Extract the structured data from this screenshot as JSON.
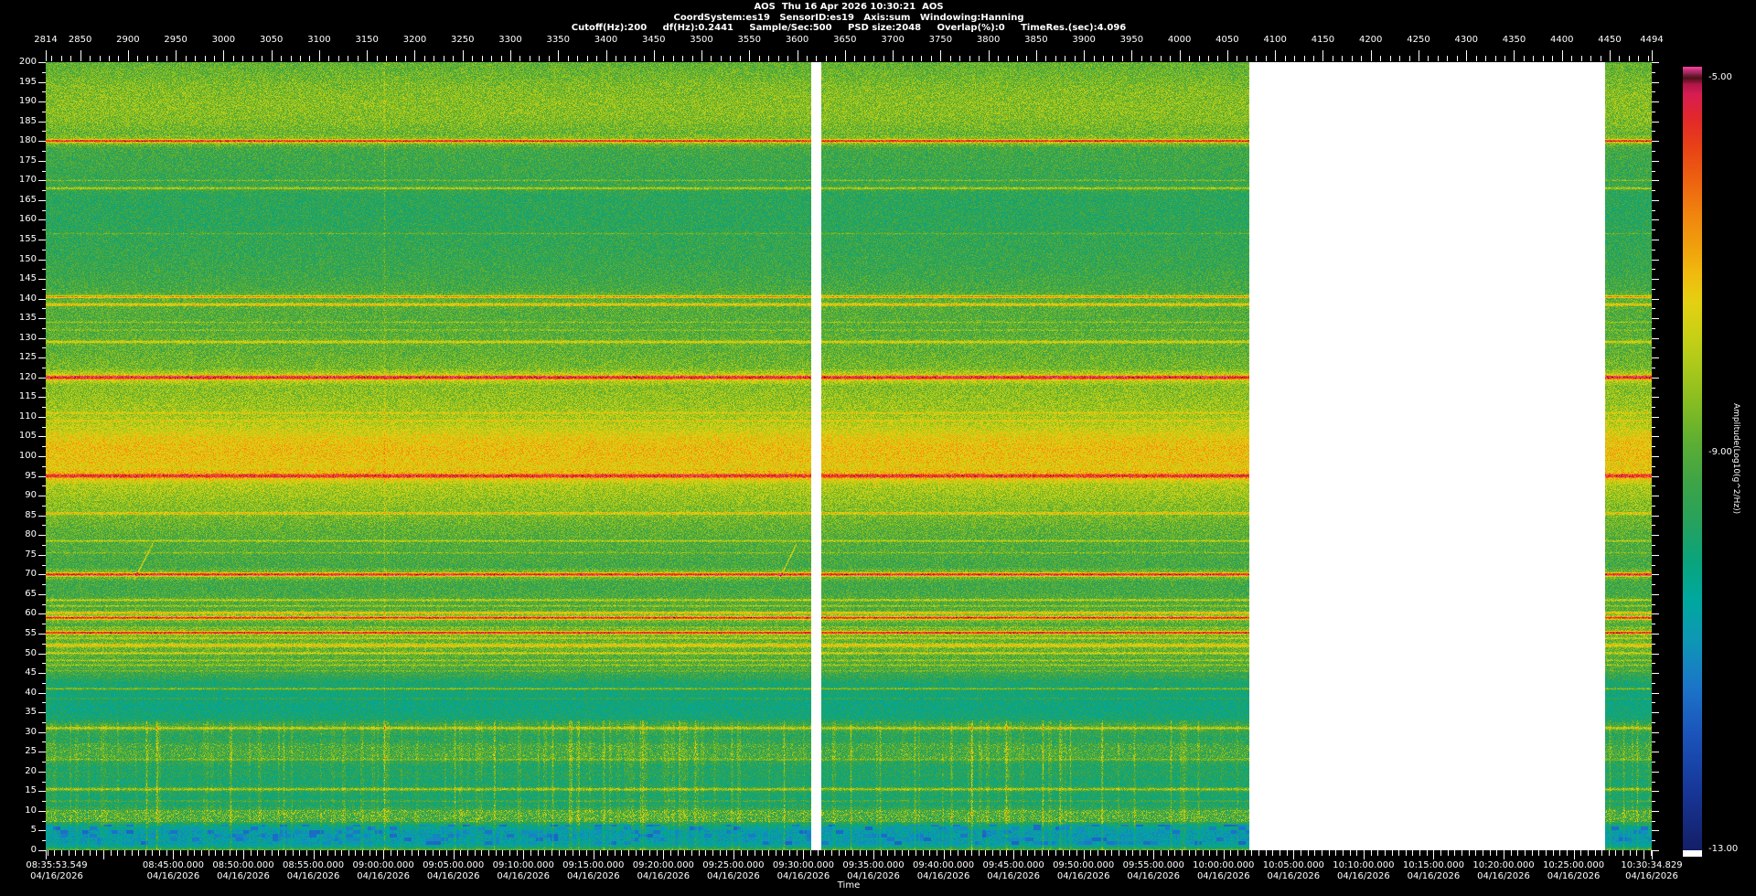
{
  "header": {
    "line1": "AOS  Thu 16 Apr 2026 10:30:21  AOS",
    "line2": "CoordSystem:es19   SensorID:es19   Axis:sum   Windowing:Hanning",
    "line3": "Cutoff(Hz):200     df(Hz):0.2441     Sample/Sec:500     PSD size:2048     Overlap(%):0     TimeRes.(sec):4.096"
  },
  "chart_data": {
    "type": "heatmap",
    "subtype": "spectrogram",
    "x_axis_top": {
      "unit": "record",
      "range": [
        2814,
        4494
      ],
      "tick_labels": [
        2814,
        2850,
        2900,
        2950,
        3000,
        3050,
        3100,
        3150,
        3200,
        3250,
        3300,
        3350,
        3400,
        3450,
        3500,
        3550,
        3600,
        3650,
        3700,
        3750,
        3800,
        3850,
        3900,
        3950,
        4000,
        4050,
        4100,
        4150,
        4200,
        4250,
        4300,
        4350,
        4400,
        4450,
        4494
      ],
      "minor_step": 10,
      "major_step": 50
    },
    "x_axis_bottom": {
      "label": "Time",
      "date": "04/16/2026",
      "start": "08:35:53.549",
      "end": "10:30:34.829",
      "labeled_times": [
        "08:45:00.000",
        "08:50:00.000",
        "08:55:00.000",
        "09:00:00.000",
        "09:05:00.000",
        "09:10:00.000",
        "09:15:00.000",
        "09:20:00.000",
        "09:25:00.000",
        "09:30:00.000",
        "09:35:00.000",
        "09:40:00.000",
        "09:45:00.000",
        "09:50:00.000",
        "09:55:00.000",
        "10:00:00.000",
        "10:05:00.000",
        "10:10:00.000",
        "10:15:00.000",
        "10:20:00.000",
        "10:25:00.000"
      ],
      "minor_step_sec": 30,
      "major_step_sec": 300
    },
    "y_axis": {
      "unit": "Hz",
      "min": 0,
      "max": 200,
      "major_step": 5,
      "minor_step": 2.5,
      "tick_labels": [
        0,
        5,
        10,
        15,
        20,
        25,
        30,
        35,
        40,
        45,
        50,
        55,
        60,
        65,
        70,
        75,
        80,
        85,
        90,
        95,
        100,
        105,
        110,
        115,
        120,
        125,
        130,
        135,
        140,
        145,
        150,
        155,
        160,
        165,
        170,
        175,
        180,
        185,
        190,
        195,
        200
      ]
    },
    "colorbar": {
      "label": "Amplitude(Log10(g^2/Hz))",
      "max": -5.0,
      "min": -13.0,
      "tick_labels": [
        "-5.00",
        "-9.00",
        "-13.00"
      ],
      "tick_values": [
        -5,
        -9,
        -13
      ]
    },
    "colormap_stops": [
      [
        0.0,
        "#141f68"
      ],
      [
        0.08,
        "#17389a"
      ],
      [
        0.15,
        "#1b55bb"
      ],
      [
        0.21,
        "#1b76c8"
      ],
      [
        0.27,
        "#0d98b4"
      ],
      [
        0.32,
        "#00a89e"
      ],
      [
        0.37,
        "#0aa47c"
      ],
      [
        0.42,
        "#27a25c"
      ],
      [
        0.47,
        "#3ea447"
      ],
      [
        0.52,
        "#5cae33"
      ],
      [
        0.57,
        "#85bc22"
      ],
      [
        0.62,
        "#adc91a"
      ],
      [
        0.66,
        "#cad015"
      ],
      [
        0.7,
        "#e4d012"
      ],
      [
        0.735,
        "#f0bb0e"
      ],
      [
        0.77,
        "#f0a00d"
      ],
      [
        0.81,
        "#f0860e"
      ],
      [
        0.85,
        "#ee6610"
      ],
      [
        0.895,
        "#e84415"
      ],
      [
        0.935,
        "#e2282a"
      ],
      [
        0.965,
        "#d81d52"
      ],
      [
        0.978,
        "#b0164a"
      ],
      [
        0.986,
        "#4a1016"
      ],
      [
        1.0,
        "#f23f9f"
      ]
    ],
    "background_profile": [
      [
        0,
        -8.8
      ],
      [
        0.9,
        -10.2
      ],
      [
        1.8,
        -10.6
      ],
      [
        4.8,
        -10.65
      ],
      [
        6.4,
        -10.0
      ],
      [
        7.2,
        -9.4
      ],
      [
        10.2,
        -9.3
      ],
      [
        11.5,
        -9.75
      ],
      [
        14,
        -9.85
      ],
      [
        17,
        -9.9
      ],
      [
        19,
        -9.65
      ],
      [
        21,
        -9.75
      ],
      [
        23.5,
        -9.3
      ],
      [
        26.5,
        -9.35
      ],
      [
        28.5,
        -9.6
      ],
      [
        30,
        -9.5
      ],
      [
        32,
        -9.4
      ],
      [
        33.5,
        -9.9
      ],
      [
        36,
        -10.05
      ],
      [
        42,
        -9.95
      ],
      [
        44,
        -9.45
      ],
      [
        46.5,
        -9.0
      ],
      [
        54,
        -8.95
      ],
      [
        58,
        -9.05
      ],
      [
        62,
        -9.1
      ],
      [
        67,
        -9.2
      ],
      [
        72,
        -9.2
      ],
      [
        76,
        -9.05
      ],
      [
        80,
        -8.9
      ],
      [
        84,
        -8.65
      ],
      [
        88,
        -8.35
      ],
      [
        92,
        -8.05
      ],
      [
        94.5,
        -7.8
      ],
      [
        96.5,
        -7.45
      ],
      [
        99,
        -7.25
      ],
      [
        102,
        -7.2
      ],
      [
        104.5,
        -7.35
      ],
      [
        106.5,
        -7.7
      ],
      [
        109,
        -8.0
      ],
      [
        112,
        -8.2
      ],
      [
        116,
        -8.35
      ],
      [
        120,
        -8.5
      ],
      [
        123,
        -8.65
      ],
      [
        127,
        -8.85
      ],
      [
        132,
        -8.95
      ],
      [
        137,
        -9.0
      ],
      [
        141,
        -9.1
      ],
      [
        146,
        -9.3
      ],
      [
        151,
        -9.4
      ],
      [
        156,
        -9.45
      ],
      [
        158,
        -9.55
      ],
      [
        166,
        -9.55
      ],
      [
        169,
        -9.4
      ],
      [
        173,
        -9.3
      ],
      [
        177,
        -9.25
      ],
      [
        180.5,
        -9.0
      ],
      [
        182.5,
        -8.7
      ],
      [
        185.5,
        -8.5
      ],
      [
        189,
        -8.45
      ],
      [
        192,
        -8.5
      ],
      [
        195,
        -8.6
      ],
      [
        198,
        -8.75
      ],
      [
        200,
        -8.8
      ]
    ],
    "tonal_lines": [
      [
        180,
        2.9,
        0.6,
        0.9
      ],
      [
        170,
        0.9,
        0.35,
        0
      ],
      [
        168,
        1.45,
        0.45,
        0.2
      ],
      [
        156.5,
        0.6,
        0.35,
        0
      ],
      [
        140.5,
        2.1,
        0.5,
        0.4
      ],
      [
        138.5,
        1.9,
        0.5,
        0.3
      ],
      [
        134,
        0.6,
        0.35,
        0
      ],
      [
        132,
        0.6,
        0.35,
        0
      ],
      [
        129,
        1.3,
        0.5,
        0.2
      ],
      [
        120,
        2.65,
        0.75,
        1.0
      ],
      [
        111,
        0.7,
        0.35,
        0
      ],
      [
        109,
        0.7,
        0.35,
        0
      ],
      [
        95,
        1.75,
        0.7,
        0.8
      ],
      [
        85.5,
        1.2,
        0.45,
        0.2
      ],
      [
        78.5,
        1.1,
        0.4,
        0
      ],
      [
        75.5,
        0.6,
        0.35,
        0
      ],
      [
        70,
        3.2,
        0.65,
        1.0
      ],
      [
        63.5,
        1.2,
        0.45,
        0.2
      ],
      [
        62,
        1.0,
        0.4,
        0
      ],
      [
        60.3,
        1.8,
        0.45,
        0.3
      ],
      [
        59,
        3.1,
        0.55,
        0.9
      ],
      [
        56.6,
        0.6,
        0.35,
        0
      ],
      [
        55.2,
        3.0,
        0.55,
        0.9
      ],
      [
        53.8,
        1.0,
        0.4,
        0
      ],
      [
        52,
        1.45,
        0.7,
        0.4
      ],
      [
        50,
        1.1,
        0.45,
        0.2
      ],
      [
        48.2,
        0.9,
        0.4,
        0
      ],
      [
        47,
        0.8,
        0.35,
        0
      ],
      [
        45.5,
        0.6,
        0.3,
        0
      ],
      [
        41,
        1.4,
        0.45,
        0.2
      ],
      [
        38.5,
        0.7,
        0.35,
        0
      ],
      [
        31,
        1.45,
        0.55,
        0.3
      ],
      [
        23,
        0.9,
        0.4,
        0
      ],
      [
        15.5,
        1.55,
        0.6,
        0.3
      ],
      [
        12.5,
        0.7,
        0.4,
        0
      ]
    ],
    "speckle_bands": [
      {
        "f0": 23.2,
        "f1": 27.2,
        "p": 0.3,
        "boost": 1.1
      },
      {
        "f0": 7.2,
        "f1": 10.2,
        "p": 0.4,
        "boost": 1.5
      },
      {
        "f0": 181,
        "f1": 195,
        "p": 0.18,
        "boost": 0.55
      }
    ],
    "blue_patch_band": {
      "f0": 1.5,
      "f1": 6.5,
      "p": 0.32,
      "depth": -10.6
    },
    "data_gaps": [
      {
        "x0": 0.4766,
        "x1": 0.4829
      },
      {
        "x0": 0.7494,
        "x1": 0.971
      }
    ],
    "vertical_streaks": [
      [
        0.0558,
        0.5,
        1
      ],
      [
        0.0626,
        1.3,
        0
      ],
      [
        0.0689,
        1.5,
        0
      ],
      [
        0.115,
        1.0,
        0
      ],
      [
        0.148,
        0.9,
        0
      ],
      [
        0.2107,
        1.8,
        1
      ],
      [
        0.2545,
        1.1,
        0
      ],
      [
        0.279,
        0.8,
        0
      ],
      [
        0.3155,
        1.2,
        0
      ],
      [
        0.3474,
        0.9,
        0
      ],
      [
        0.3701,
        1.0,
        0
      ],
      [
        0.4043,
        0.8,
        0
      ],
      [
        0.4271,
        0.9,
        0
      ],
      [
        0.4595,
        1.3,
        0
      ],
      [
        0.5011,
        1.2,
        0
      ],
      [
        0.5194,
        1.0,
        0
      ],
      [
        0.541,
        0.9,
        0
      ],
      [
        0.5638,
        0.8,
        0
      ],
      [
        0.5763,
        1.4,
        0
      ],
      [
        0.5979,
        1.1,
        0
      ],
      [
        0.6207,
        1.5,
        0
      ],
      [
        0.6378,
        0.9,
        0
      ],
      [
        0.6577,
        0.8,
        0
      ],
      [
        0.6776,
        1.0,
        0
      ],
      [
        0.7004,
        0.9,
        0
      ],
      [
        0.7175,
        0.8,
        0
      ],
      [
        0.9738,
        0.9,
        0
      ],
      [
        0.9824,
        0.8,
        0
      ],
      [
        0.9909,
        1.0,
        0
      ]
    ],
    "chirps": [
      {
        "x0": 0.0553,
        "x1": 0.066,
        "f0": 69,
        "f1": 77.5,
        "a": 1.5
      },
      {
        "x0": 0.4568,
        "x1": 0.4672,
        "f0": 69,
        "f1": 77.5,
        "a": 1.5
      }
    ]
  }
}
